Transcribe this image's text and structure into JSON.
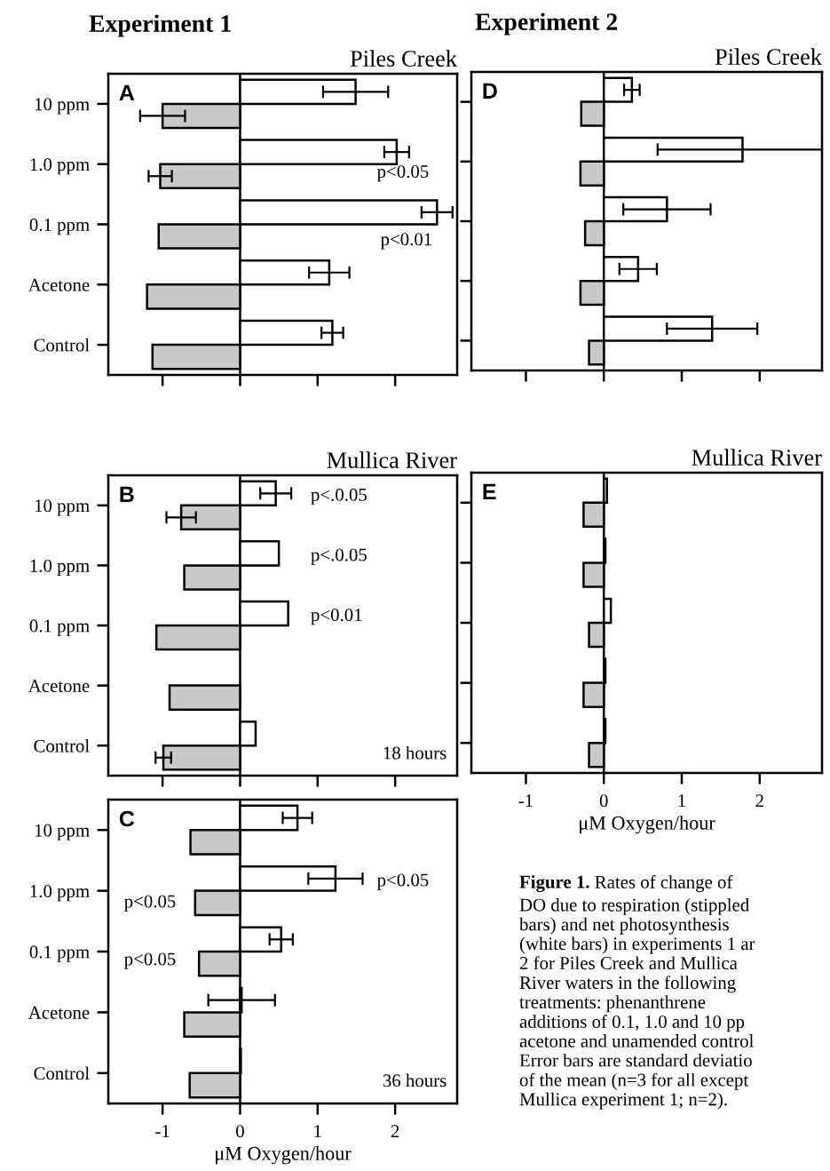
{
  "chart_data": [
    {
      "type": "other",
      "title": "Experiment 1"
    },
    {
      "type": "bar",
      "orientation": "horizontal",
      "title": "Piles Creek",
      "categories": [
        "10 ppm",
        "1.0 ppm",
        "0.1 ppm",
        "Acetone",
        "Control"
      ],
      "series": [
        {
          "color": "#ffffff",
          "values": [
            1.49,
            2.02,
            2.54,
            1.15,
            1.19
          ],
          "errors": [
            0.42,
            0.16,
            0.2,
            0.26,
            0.14
          ]
        },
        {
          "color": "#c8c8c8",
          "values": [
            -1.0,
            -1.03,
            -1.05,
            -1.2,
            -1.13
          ],
          "errors": [
            0.29,
            0.15,
            null,
            null,
            null
          ]
        }
      ],
      "xlim": [
        -1.7,
        2.8
      ],
      "xticks": [
        -1,
        0,
        1,
        2
      ],
      "tick_labels": "y",
      "ref_lines": [
        {
          "axis": "x",
          "value": 0
        }
      ],
      "annotations": [
        "A",
        "p<0.05",
        "p<0.01"
      ]
    },
    {
      "type": "bar",
      "orientation": "horizontal",
      "title": "Mullica River",
      "categories": [
        "10 ppm",
        "1.0 ppm",
        "0.1 ppm",
        "Acetone",
        "Control"
      ],
      "series": [
        {
          "color": "#ffffff",
          "values": [
            0.46,
            0.5,
            0.62,
            null,
            0.2
          ],
          "errors": [
            0.2,
            null,
            null,
            null,
            null
          ]
        },
        {
          "color": "#c8c8c8",
          "values": [
            -0.76,
            -0.72,
            -1.08,
            -0.91,
            -0.99
          ],
          "errors": [
            0.19,
            null,
            null,
            null,
            0.1
          ]
        }
      ],
      "xlim": [
        -1.7,
        2.8
      ],
      "xticks": [
        -1,
        0,
        1,
        2
      ],
      "tick_labels": "y",
      "ref_lines": [
        {
          "axis": "x",
          "value": 0
        }
      ],
      "annotations": [
        "B",
        "18 hours",
        "p<.0.05",
        "p<.0.05",
        "p<0.01"
      ]
    },
    {
      "type": "bar",
      "orientation": "horizontal",
      "xlabel": "μM Oxygen/hour",
      "categories": [
        "10 ppm",
        "1.0 ppm",
        "0.1 ppm",
        "Acetone",
        "Control"
      ],
      "series": [
        {
          "color": "#ffffff",
          "values": [
            0.74,
            1.23,
            0.53,
            0.02,
            0.01
          ],
          "errors": [
            0.19,
            0.35,
            0.15,
            0.43,
            null
          ]
        },
        {
          "color": "#c8c8c8",
          "values": [
            -0.64,
            -0.58,
            -0.53,
            -0.72,
            -0.65
          ]
        }
      ],
      "xlim": [
        -1.7,
        2.8
      ],
      "xticks": [
        -1,
        0,
        1,
        2
      ],
      "ref_lines": [
        {
          "axis": "x",
          "value": 0
        }
      ],
      "annotations": [
        "C",
        "36 hours",
        "p<0.05",
        "p<0.05",
        "p<0.05"
      ]
    },
    {
      "type": "other",
      "title": "Experiment 2"
    },
    {
      "type": "bar",
      "orientation": "horizontal",
      "title": "Piles Creek",
      "categories": [
        null,
        null,
        null,
        null,
        null
      ],
      "series": [
        {
          "color": "#ffffff",
          "values": [
            0.36,
            1.78,
            0.81,
            0.44,
            1.39
          ],
          "errors": [
            0.1,
            1.09,
            0.56,
            0.24,
            0.58
          ]
        },
        {
          "color": "#c8c8c8",
          "values": [
            -0.29,
            -0.3,
            -0.24,
            -0.3,
            -0.19
          ]
        }
      ],
      "xlim": [
        -1.7,
        2.8
      ],
      "xticks": [
        -1,
        0,
        1,
        2
      ],
      "tick_labels": false,
      "ref_lines": [
        {
          "axis": "x",
          "value": 0
        }
      ],
      "annotations": [
        "D"
      ]
    },
    {
      "type": "bar",
      "orientation": "horizontal",
      "title": "Mullica River",
      "xlabel": "μM Oxygen/hour",
      "categories": [
        null,
        null,
        null,
        null,
        null
      ],
      "series": [
        {
          "color": "#ffffff",
          "values": [
            0.04,
            0.02,
            0.09,
            0.02,
            0.02
          ]
        },
        {
          "color": "#c8c8c8",
          "values": [
            -0.26,
            -0.26,
            -0.19,
            -0.26,
            -0.19
          ]
        }
      ],
      "xlim": [
        -1.7,
        2.8
      ],
      "xticks": [
        -1,
        0,
        1,
        2
      ],
      "tick_labels": "x",
      "ref_lines": [
        {
          "axis": "x",
          "value": 0
        }
      ],
      "annotations": [
        "E"
      ]
    },
    {
      "type": "other",
      "title": "Figure 1.",
      "annotations": [
        "Rates of change of\nDO due to respiration (stippled\nbars) and net photosynthesis\n(white bars) in experiments 1 ar\n2 for Piles Creek and Mullica\nRiver waters in the following\ntreatments: phenanthrene\nadditions of 0.1, 1.0 and 10 pp\nacetone and unamended control\nError bars are standard deviatio\nof the mean (n=3 for all except\nMullica experiment 1; n=2)."
      ]
    }
  ]
}
